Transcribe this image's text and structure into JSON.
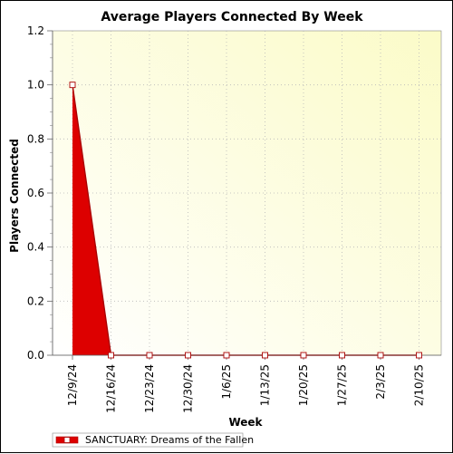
{
  "chart_data": {
    "type": "area",
    "title": "Average Players Connected By Week",
    "xlabel": "Week",
    "ylabel": "Players Connected",
    "ylim": [
      0,
      1.2
    ],
    "yticks": [
      "0.0",
      "0.2",
      "0.4",
      "0.6",
      "0.8",
      "1.0",
      "1.2"
    ],
    "categories": [
      "12/9/24",
      "12/16/24",
      "12/23/24",
      "12/30/24",
      "1/6/25",
      "1/13/25",
      "1/20/25",
      "1/27/25",
      "2/3/25",
      "2/10/25"
    ],
    "series": [
      {
        "name": "SANCTUARY: Dreams of the Fallen",
        "values": [
          1.0,
          0,
          0,
          0,
          0,
          0,
          0,
          0,
          0,
          0
        ]
      }
    ],
    "grid": true,
    "legend_position": "bottom-left"
  },
  "colors": {
    "series_fill": "#dd0000",
    "series_line": "#aa0000",
    "plot_bg_left": "#fffef2",
    "plot_bg_right": "#fbfbc8"
  }
}
